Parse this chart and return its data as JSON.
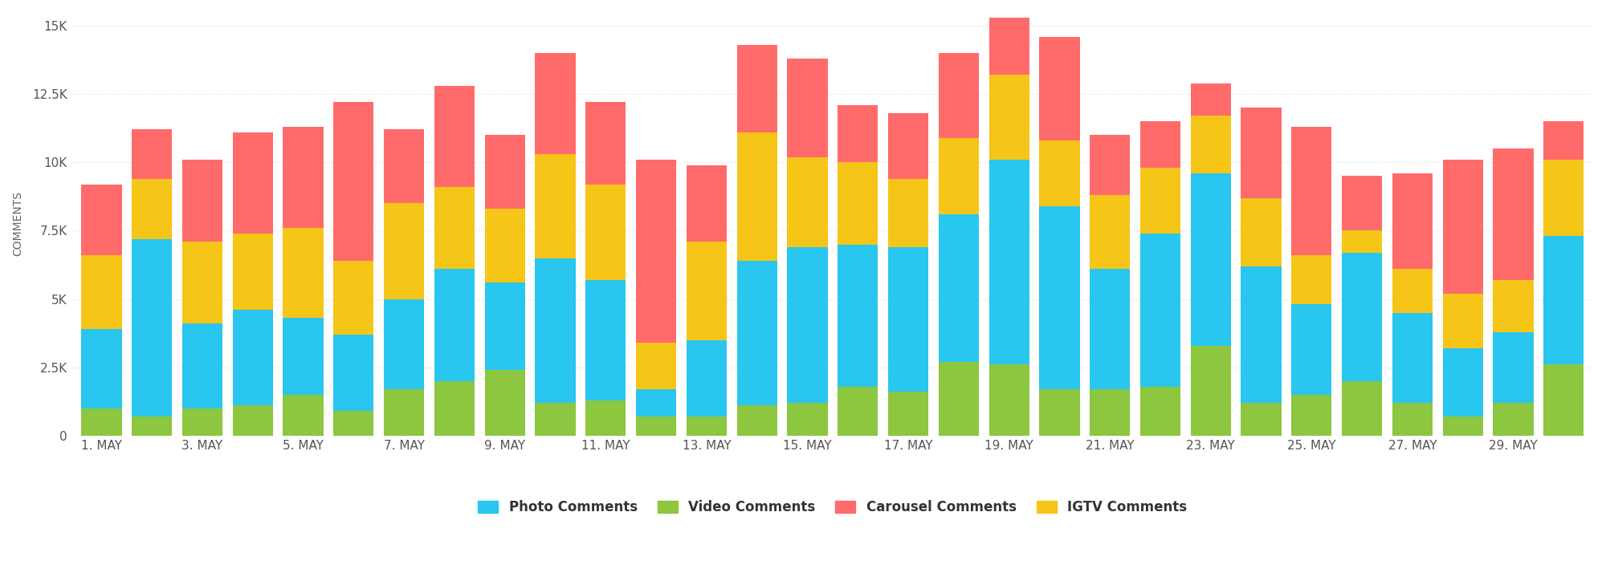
{
  "dates": [
    "1. MAY",
    "",
    "3. MAY",
    "",
    "5. MAY",
    "",
    "7. MAY",
    "",
    "9. MAY",
    "",
    "11. MAY",
    "",
    "13. MAY",
    "",
    "15. MAY",
    "",
    "17. MAY",
    "",
    "19. MAY",
    "",
    "21. MAY",
    "",
    "23. MAY",
    "",
    "25. MAY",
    "",
    "27. MAY",
    "",
    "29. MAY",
    ""
  ],
  "photo": [
    2900,
    6500,
    3100,
    3500,
    2800,
    2800,
    3300,
    4100,
    3200,
    5300,
    4400,
    1000,
    2800,
    5300,
    5700,
    5200,
    5300,
    5400,
    7500,
    6700,
    4400,
    5600,
    6300,
    5000,
    3300,
    4700,
    3300,
    2500,
    2600,
    4700
  ],
  "video": [
    1000,
    700,
    1000,
    1100,
    1500,
    900,
    1700,
    2000,
    2400,
    1200,
    1300,
    700,
    700,
    1100,
    1200,
    1800,
    1600,
    2700,
    2600,
    1700,
    1700,
    1800,
    3300,
    1200,
    1500,
    2000,
    1200,
    700,
    1200,
    2600
  ],
  "igtv": [
    2700,
    2200,
    3000,
    2800,
    3300,
    2700,
    3500,
    3000,
    2700,
    3800,
    3500,
    1700,
    3600,
    4700,
    3300,
    3000,
    2500,
    2800,
    3100,
    2400,
    2700,
    2400,
    2100,
    2500,
    1800,
    800,
    1600,
    2000,
    1900,
    2800
  ],
  "carousel": [
    2600,
    1800,
    3000,
    3700,
    3700,
    5800,
    2700,
    3700,
    2700,
    3700,
    3000,
    6700,
    2800,
    3200,
    3600,
    2100,
    2400,
    3100,
    2100,
    3800,
    2200,
    1700,
    1200,
    3300,
    4700,
    2000,
    3500,
    4900,
    4800,
    1400
  ],
  "photo_color": "#29c6f0",
  "video_color": "#8dc63f",
  "carousel_color": "#ff6b6b",
  "igtv_color": "#f5c518",
  "background_color": "#ffffff",
  "grid_color": "#dddddd",
  "ylabel": "COMMENTS",
  "yticks": [
    0,
    2500,
    5000,
    7500,
    10000,
    12500,
    15000
  ],
  "ytick_labels": [
    "0",
    "2.5K",
    "5K",
    "7.5K",
    "10K",
    "12.5K",
    "15K"
  ],
  "ylim": [
    0,
    15500
  ],
  "bar_width": 0.8,
  "legend_labels": [
    "Photo Comments",
    "Video Comments",
    "Carousel Comments",
    "IGTV Comments"
  ]
}
